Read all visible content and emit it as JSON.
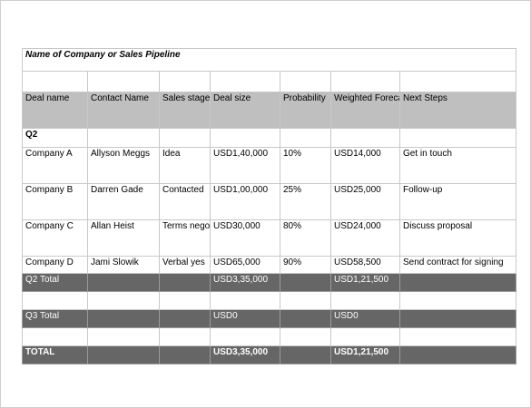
{
  "title": "Name of Company or Sales Pipeline",
  "headers": {
    "deal_name": "Deal name",
    "contact_name": "Contact Name",
    "sales_stage": "Sales stage",
    "deal_size": "Deal size",
    "probability": "Probability",
    "weighted_forecast": "Weighted Forecast",
    "next_steps": "Next Steps"
  },
  "q2_label": "Q2",
  "rows": [
    {
      "deal": "Company A",
      "contact": "Allyson Meggs",
      "stage": "Idea",
      "size": "USD1,40,000",
      "prob": "10%",
      "forecast": "USD14,000",
      "next": "Get in touch"
    },
    {
      "deal": "Company B",
      "contact": "Darren Gade",
      "stage": "Contacted",
      "size": "USD1,00,000",
      "prob": "25%",
      "forecast": "USD25,000",
      "next": "Follow-up"
    },
    {
      "deal": "Company C",
      "contact": "Allan Heist",
      "stage": "Terms negotiated",
      "size": "USD30,000",
      "prob": "80%",
      "forecast": "USD24,000",
      "next": "Discuss proposal"
    },
    {
      "deal": "Company D",
      "contact": "Jami Slowik",
      "stage": "Verbal yes",
      "size": "USD65,000",
      "prob": "90%",
      "forecast": "USD58,500",
      "next": "Send contract for signing"
    }
  ],
  "q2_total": {
    "label": "Q2 Total",
    "size": "USD3,35,000",
    "forecast": "USD1,21,500"
  },
  "q3_total": {
    "label": "Q3 Total",
    "size": "USD0",
    "forecast": "USD0"
  },
  "grand_total": {
    "label": "TOTAL",
    "size": "USD3,35,000",
    "forecast": "USD1,21,500"
  },
  "colors": {
    "header_bg": "#bfbfbf",
    "total_bg": "#666666",
    "gridline": "#c8c8c8"
  }
}
